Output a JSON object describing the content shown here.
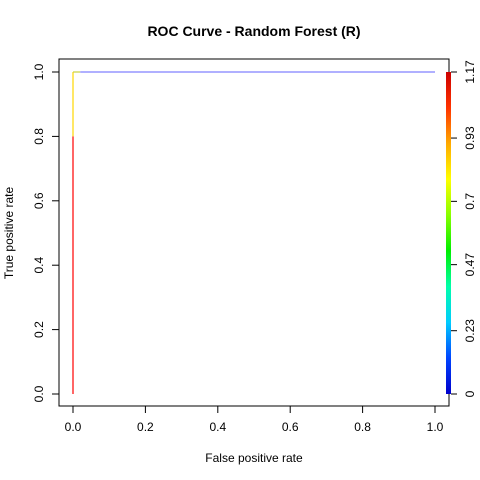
{
  "chart_data": {
    "type": "line",
    "title": "ROC Curve - Random Forest (R)",
    "xlabel": "False positive rate",
    "ylabel": "True positive rate",
    "xlim": [
      0,
      1
    ],
    "ylim": [
      0,
      1
    ],
    "x_ticks": [
      0.0,
      0.2,
      0.4,
      0.6,
      0.8,
      1.0
    ],
    "x_tick_labels": [
      "0.0",
      "0.2",
      "0.4",
      "0.6",
      "0.8",
      "1.0"
    ],
    "y_ticks": [
      0.0,
      0.2,
      0.4,
      0.6,
      0.8,
      1.0
    ],
    "y_tick_labels": [
      "0.0",
      "0.2",
      "0.4",
      "0.6",
      "0.8",
      "1.0"
    ],
    "grid": false,
    "series": [
      {
        "segments": [
          {
            "x": [
              0.0,
              0.0
            ],
            "y": [
              0.0,
              0.8
            ],
            "color": "#ff0000"
          },
          {
            "x": [
              0.0,
              0.0
            ],
            "y": [
              0.8,
              1.0
            ],
            "color": "#ffd700"
          },
          {
            "x": [
              0.0,
              0.02
            ],
            "y": [
              1.0,
              1.0
            ],
            "color": "#c8d040"
          },
          {
            "x": [
              0.02,
              1.0
            ],
            "y": [
              1.0,
              1.0
            ],
            "color": "#8080ff"
          }
        ]
      }
    ],
    "colorbar": {
      "range": [
        0,
        1.17
      ],
      "ticks": [
        0,
        0.23,
        0.47,
        0.7,
        0.93,
        1.17
      ],
      "tick_labels": [
        "0",
        "0.23",
        "0.47",
        "0.7",
        "0.93",
        "1.17"
      ],
      "colors": [
        "#0000cc",
        "#0044ff",
        "#00ccff",
        "#00ffaa",
        "#00ee00",
        "#88ff00",
        "#ffff00",
        "#ffaa00",
        "#ff3300",
        "#cc0000"
      ]
    }
  }
}
